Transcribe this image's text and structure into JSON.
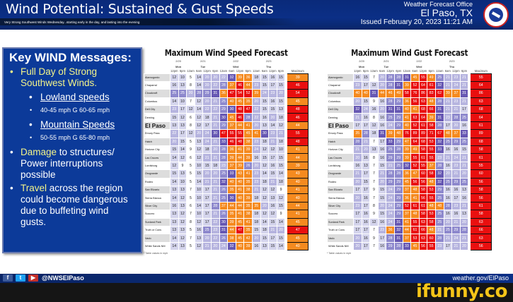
{
  "header": {
    "title": "Wind Potential: Sustained & Gust Speeds",
    "subtitle": "Very Strong Southwest Winds Wednesday...starting early in the day, and lasting into the evening",
    "office": "Weather Forecast Office",
    "city": "El Paso, TX",
    "issued": "Issued February 20, 2023 11:21 AM",
    "logo_icon": "nws-logo-icon"
  },
  "key_messages": {
    "title": "Key WIND Messages:",
    "item1": "Full Day of Strong Southwest Winds.",
    "lowland_label": "Lowland speeds",
    "lowland_values": "40-45 mph  G 60-65 mph",
    "mountain_label": "Mountain Speeds",
    "mountain_values": "50-55 mph  G 65-80 mph",
    "damage_hl": "Damage",
    "damage_rest": " to structures/ Power interruptions possible",
    "travel_hl": "Travel",
    "travel_rest": " across the region could become dangerous due to buffeting wind gusts."
  },
  "columns": {
    "dates": [
      "2/20",
      "2/21",
      "2/22",
      "2/23"
    ],
    "days": [
      "Mon",
      "Tue",
      "Wed",
      "Thu"
    ],
    "times": [
      "12pm",
      "6pm",
      "12am",
      "6am",
      "12pm",
      "6pm",
      "12am",
      "6am",
      "12pm",
      "6pm",
      "12am",
      "6am",
      "12pm",
      "6pm"
    ],
    "max_label": "Maximum"
  },
  "locations": [
    "Alamogordo",
    "Chaparral",
    "Cloudcroft",
    "Columbus",
    "Dell City",
    "Deming",
    "El Paso",
    "Emory Pass",
    "Hatch",
    "Horizon City",
    "Las Cruces",
    "Lordsburg",
    "Orogrande",
    "Rodeo",
    "San Elizario",
    "Sierra Blanca",
    "Silver City",
    "Socorro",
    "Sunland Park",
    "Truth or Cons",
    "Vado",
    "White Sands NM"
  ],
  "speed": {
    "title": "Maximum Wind Speed Forecast",
    "rows": [
      [
        12,
        10,
        5,
        14,
        20,
        20,
        22,
        32,
        39,
        36,
        18,
        15,
        16,
        15,
        39
      ],
      [
        16,
        13,
        8,
        14,
        20,
        22,
        28,
        37,
        46,
        44,
        23,
        15,
        17,
        15,
        46
      ],
      [
        25,
        25,
        20,
        28,
        29,
        31,
        36,
        47,
        54,
        52,
        39,
        24,
        23,
        20,
        54
      ],
      [
        14,
        10,
        7,
        12,
        20,
        21,
        25,
        40,
        45,
        35,
        20,
        15,
        16,
        15,
        45
      ],
      [
        23,
        17,
        12,
        14,
        22,
        22,
        29,
        30,
        48,
        47,
        22,
        15,
        15,
        13,
        48
      ],
      [
        15,
        12,
        6,
        12,
        18,
        21,
        30,
        45,
        46,
        28,
        22,
        16,
        20,
        18,
        46
      ],
      [
        13,
        13,
        8,
        12,
        17,
        21,
        29,
        37,
        44,
        41,
        20,
        13,
        14,
        12,
        44
      ],
      [
        22,
        17,
        12,
        20,
        24,
        30,
        47,
        55,
        55,
        45,
        41,
        30,
        23,
        21,
        55
      ],
      [
        20,
        15,
        5,
        13,
        24,
        21,
        33,
        46,
        48,
        38,
        23,
        18,
        21,
        18,
        48
      ],
      [
        15,
        14,
        9,
        12,
        18,
        20,
        28,
        36,
        41,
        39,
        24,
        12,
        12,
        10,
        41
      ],
      [
        14,
        12,
        6,
        12,
        21,
        21,
        28,
        39,
        44,
        39,
        16,
        15,
        17,
        15,
        44
      ],
      [
        12,
        9,
        5,
        10,
        15,
        18,
        23,
        37,
        39,
        26,
        20,
        12,
        16,
        15,
        39
      ],
      [
        15,
        13,
        5,
        15,
        20,
        20,
        25,
        33,
        43,
        41,
        23,
        14,
        15,
        14,
        43
      ],
      [
        14,
        10,
        5,
        14,
        21,
        21,
        32,
        40,
        40,
        35,
        23,
        18,
        21,
        18,
        40
      ],
      [
        13,
        13,
        7,
        10,
        17,
        21,
        26,
        35,
        41,
        38,
        21,
        12,
        12,
        9,
        41
      ],
      [
        14,
        12,
        5,
        10,
        17,
        21,
        25,
        30,
        40,
        39,
        18,
        12,
        13,
        12,
        40
      ],
      [
        16,
        13,
        6,
        14,
        17,
        28,
        37,
        44,
        44,
        35,
        35,
        20,
        16,
        15,
        44
      ],
      [
        13,
        12,
        7,
        10,
        17,
        21,
        26,
        35,
        41,
        38,
        18,
        12,
        12,
        9,
        41
      ],
      [
        13,
        12,
        8,
        12,
        17,
        22,
        30,
        39,
        45,
        41,
        18,
        14,
        15,
        14,
        45
      ],
      [
        13,
        13,
        5,
        16,
        25,
        23,
        31,
        44,
        47,
        35,
        15,
        18,
        21,
        20,
        47
      ],
      [
        14,
        12,
        7,
        13,
        20,
        22,
        26,
        38,
        45,
        42,
        20,
        15,
        17,
        15,
        45
      ],
      [
        14,
        13,
        5,
        12,
        21,
        20,
        24,
        32,
        40,
        39,
        16,
        13,
        15,
        14,
        40
      ]
    ]
  },
  "gust": {
    "title": "Maximum Wind Gust Forecast",
    "rows": [
      [
        16,
        15,
        7,
        20,
        28,
        28,
        31,
        45,
        55,
        49,
        25,
        21,
        23,
        21,
        55
      ],
      [
        23,
        17,
        12,
        20,
        28,
        31,
        39,
        52,
        64,
        61,
        32,
        21,
        24,
        21,
        64
      ],
      [
        40,
        40,
        31,
        44,
        46,
        49,
        58,
        76,
        86,
        83,
        62,
        39,
        37,
        31,
        86
      ],
      [
        20,
        15,
        9,
        16,
        28,
        29,
        36,
        56,
        63,
        48,
        28,
        21,
        23,
        21,
        63
      ],
      [
        32,
        24,
        16,
        20,
        31,
        31,
        40,
        41,
        68,
        66,
        31,
        21,
        21,
        17,
        68
      ],
      [
        21,
        16,
        8,
        16,
        25,
        29,
        41,
        63,
        64,
        39,
        31,
        23,
        28,
        25,
        64
      ],
      [
        17,
        17,
        12,
        16,
        24,
        29,
        40,
        52,
        61,
        58,
        28,
        17,
        20,
        16,
        61
      ],
      [
        35,
        28,
        18,
        31,
        39,
        48,
        76,
        89,
        89,
        71,
        67,
        48,
        37,
        33,
        89
      ],
      [
        28,
        21,
        7,
        17,
        33,
        29,
        47,
        64,
        68,
        53,
        32,
        25,
        29,
        25,
        68
      ],
      [
        21,
        20,
        13,
        16,
        25,
        28,
        39,
        49,
        58,
        55,
        33,
        16,
        16,
        15,
        58
      ],
      [
        20,
        16,
        8,
        16,
        29,
        29,
        39,
        55,
        61,
        55,
        23,
        21,
        24,
        21,
        61
      ],
      [
        16,
        13,
        7,
        15,
        21,
        25,
        32,
        52,
        55,
        37,
        28,
        16,
        23,
        21,
        55
      ],
      [
        21,
        17,
        7,
        21,
        28,
        28,
        36,
        47,
        60,
        58,
        32,
        20,
        21,
        20,
        60
      ],
      [
        20,
        15,
        7,
        20,
        29,
        29,
        45,
        56,
        56,
        48,
        32,
        25,
        29,
        25,
        56
      ],
      [
        17,
        17,
        9,
        15,
        24,
        29,
        37,
        48,
        58,
        53,
        29,
        16,
        16,
        13,
        58
      ],
      [
        20,
        16,
        7,
        15,
        24,
        29,
        36,
        41,
        56,
        55,
        25,
        16,
        17,
        16,
        56
      ],
      [
        23,
        17,
        8,
        20,
        24,
        29,
        52,
        61,
        61,
        48,
        48,
        28,
        23,
        21,
        61
      ],
      [
        17,
        16,
        9,
        15,
        24,
        29,
        37,
        48,
        58,
        53,
        25,
        16,
        16,
        13,
        58
      ],
      [
        17,
        16,
        12,
        16,
        24,
        31,
        41,
        55,
        63,
        58,
        25,
        20,
        21,
        20,
        63
      ],
      [
        17,
        17,
        7,
        23,
        36,
        32,
        44,
        61,
        66,
        48,
        21,
        25,
        29,
        28,
        66
      ],
      [
        20,
        16,
        9,
        17,
        28,
        31,
        37,
        53,
        63,
        60,
        28,
        21,
        24,
        21,
        63
      ],
      [
        20,
        17,
        7,
        16,
        29,
        28,
        33,
        45,
        56,
        55,
        23,
        17,
        21,
        20,
        56
      ]
    ]
  },
  "footnote": "* Table values in mph",
  "footer": {
    "handle": "@NWSElPaso",
    "site": "weather.gov/ElPaso",
    "social_icons": [
      "facebook-icon",
      "twitter-icon",
      "youtube-icon"
    ],
    "watermark": "ifunny.co"
  },
  "colors": {
    "header_blue": "#0b2f86",
    "keybox_blue": "#0c3a99",
    "highlight_yellow": "#f3f48a",
    "orange": "#f58a1f",
    "red": "#e90f0f",
    "purple_dark": "#6758b3",
    "purple_light": "#d4d4ec"
  }
}
